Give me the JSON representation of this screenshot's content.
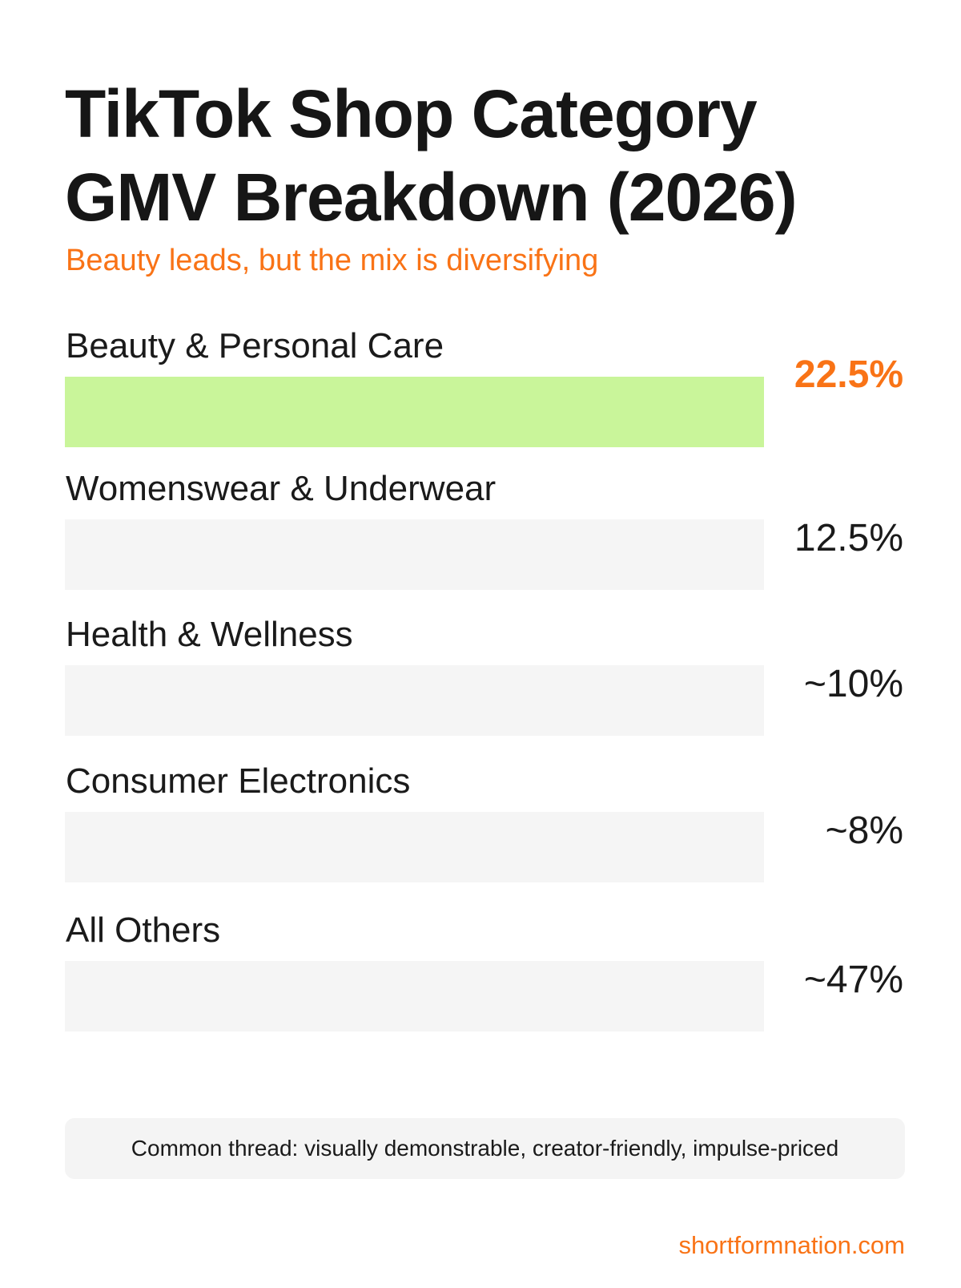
{
  "colors": {
    "accent": "#f97316",
    "highlight_bar": "#c9f59a",
    "track": "#f5f5f5",
    "text": "#1a1a1a"
  },
  "chart_data": {
    "type": "bar",
    "orientation": "horizontal",
    "title_lines": [
      "TikTok Shop Category",
      "GMV Breakdown (2026)"
    ],
    "subtitle": "Beauty leads, but the mix is diversifying",
    "categories": [
      "Beauty & Personal Care",
      "Womenswear & Underwear",
      "Health & Wellness",
      "Consumer Electronics",
      "All Others"
    ],
    "values": [
      22.5,
      12.5,
      10,
      8,
      47
    ],
    "value_labels": [
      "22.5%",
      "12.5%",
      "~10%",
      "~8%",
      "~47%"
    ],
    "highlighted_index": 0,
    "grid": false,
    "legend": "none"
  },
  "footnote": "Common thread: visually demonstrable, creator-friendly, impulse-priced",
  "source": "shortformnation.com"
}
